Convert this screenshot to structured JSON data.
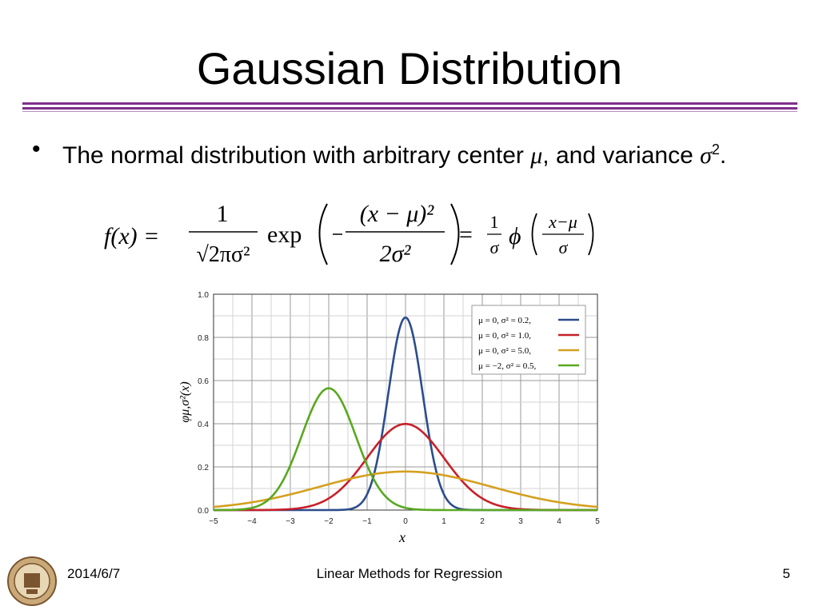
{
  "slide": {
    "title": "Gaussian Distribution",
    "bullet": {
      "marker": "•",
      "text_before": "The normal distribution with arbitrary center ",
      "mu": "μ",
      "text_middle": ", and variance ",
      "sigma": "σ",
      "exponent": "2",
      "text_after": "."
    }
  },
  "formula": {
    "lhs": "f(x) =",
    "frac1_num": "1",
    "frac1_den": "√2πσ²",
    "exp": "exp",
    "inner_num": "(x − μ)²",
    "inner_den": "2σ²",
    "equals": "=",
    "frac2_num": "1",
    "frac2_den": "σ",
    "phi": "ϕ",
    "phi_num": "x−μ",
    "phi_den": "σ"
  },
  "chart_data": {
    "type": "line",
    "title": "",
    "xlabel": "x",
    "ylabel": "φμ,σ²(x)",
    "xlim": [
      -5,
      5
    ],
    "ylim": [
      0,
      1.0
    ],
    "grid": true,
    "legend_position": "top-right",
    "x_ticks": [
      "−5",
      "−4",
      "−3",
      "−2",
      "−1",
      "0",
      "1",
      "2",
      "3",
      "4",
      "5"
    ],
    "y_ticks": [
      "0.0",
      "0.2",
      "0.4",
      "0.6",
      "0.8",
      "1.0"
    ],
    "series": [
      {
        "name": "μ = 0,   σ² = 0.2,",
        "mu": 0,
        "sigma2": 0.2,
        "color": "#2b4d8c"
      },
      {
        "name": "μ = 0,   σ² = 1.0,",
        "mu": 0,
        "sigma2": 1.0,
        "color": "#c8202a"
      },
      {
        "name": "μ = 0,   σ² = 5.0,",
        "mu": 0,
        "sigma2": 5.0,
        "color": "#d4a020"
      },
      {
        "name": "μ = −2,  σ² = 0.5,",
        "mu": -2,
        "sigma2": 0.5,
        "color": "#58a820"
      }
    ]
  },
  "footer": {
    "date": "2014/6/7",
    "center": "Linear Methods for Regression",
    "page": "5"
  }
}
